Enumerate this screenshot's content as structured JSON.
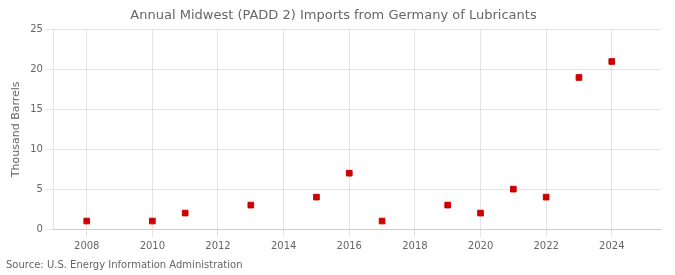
{
  "chart_data": {
    "type": "scatter",
    "title": "Annual Midwest (PADD 2) Imports from Germany of Lubricants",
    "ylabel": "Thousand Barrels",
    "annotations": [
      "Source: U.S. Energy Information Administration"
    ],
    "x": [
      2008,
      2010,
      2011,
      2013,
      2015,
      2016,
      2017,
      2019,
      2020,
      2021,
      2022,
      2023,
      2024
    ],
    "values": [
      1,
      1,
      2,
      3,
      4,
      7,
      1,
      3,
      2,
      5,
      4,
      19,
      21
    ],
    "color": "#cc0000",
    "marker": "square",
    "xlim": [
      2007,
      2025.5
    ],
    "xticks": [
      2008,
      2010,
      2012,
      2014,
      2016,
      2018,
      2020,
      2022,
      2024
    ],
    "ylim": [
      0,
      25
    ],
    "yticks": [
      0,
      5,
      10,
      15,
      20,
      25
    ],
    "grid": true
  }
}
